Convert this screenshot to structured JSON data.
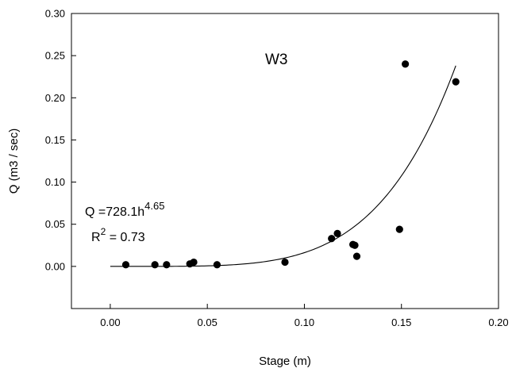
{
  "chart_data": {
    "type": "scatter",
    "title": "W3",
    "xlabel": "Stage (m)",
    "ylabel": "Q (m3 / sec)",
    "xlim": [
      -0.02,
      0.2
    ],
    "ylim": [
      -0.05,
      0.3
    ],
    "xticks": [
      0.0,
      0.05,
      0.1,
      0.15,
      0.2
    ],
    "xtick_labels": [
      "0.00",
      "0.05",
      "0.10",
      "0.15",
      "0.20"
    ],
    "yticks": [
      0.0,
      0.05,
      0.1,
      0.15,
      0.2,
      0.25,
      0.3
    ],
    "ytick_labels": [
      "0.00",
      "0.05",
      "0.10",
      "0.15",
      "0.20",
      "0.25",
      "0.30"
    ],
    "grid": false,
    "points": [
      {
        "x": 0.008,
        "y": 0.002
      },
      {
        "x": 0.023,
        "y": 0.002
      },
      {
        "x": 0.029,
        "y": 0.002
      },
      {
        "x": 0.041,
        "y": 0.003
      },
      {
        "x": 0.043,
        "y": 0.005
      },
      {
        "x": 0.055,
        "y": 0.002
      },
      {
        "x": 0.09,
        "y": 0.005
      },
      {
        "x": 0.114,
        "y": 0.033
      },
      {
        "x": 0.117,
        "y": 0.039
      },
      {
        "x": 0.125,
        "y": 0.026
      },
      {
        "x": 0.126,
        "y": 0.025
      },
      {
        "x": 0.127,
        "y": 0.012
      },
      {
        "x": 0.149,
        "y": 0.044
      },
      {
        "x": 0.152,
        "y": 0.24
      },
      {
        "x": 0.178,
        "y": 0.219
      }
    ],
    "fit": {
      "coefficient": 728.1,
      "exponent": 4.65,
      "x_range": [
        0.0,
        0.178
      ]
    },
    "equation": {
      "lhs": "Q =728.1h",
      "exponent": "4.65",
      "r2_base": "R",
      "r2_sup": "2",
      "r2_value": " = 0.73"
    }
  }
}
